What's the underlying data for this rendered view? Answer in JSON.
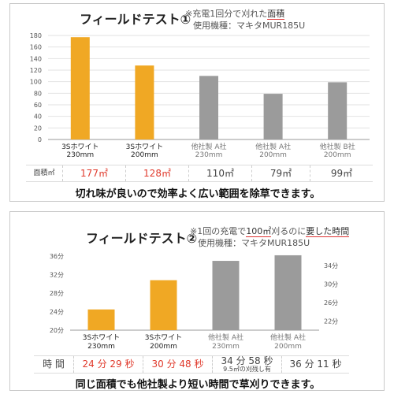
{
  "panels": [
    {
      "title": "フィールドテスト①",
      "note_prefix": "※充電1回分で刈れた",
      "note_highlight": "面積",
      "model": "使用機種：マキタMUR185U",
      "caption": "切れ味が良いので効率よく広い範囲を除草できます。",
      "result_label": "面積㎡",
      "results": [
        "177㎡",
        "128㎡",
        "110㎡",
        "79㎡",
        "99㎡"
      ],
      "result_colors": [
        "#e0392b",
        "#e0392b",
        "#444444",
        "#444444",
        "#444444"
      ]
    },
    {
      "title": "フィールドテスト②",
      "note_prefix": "※1回の充電で",
      "note_highlight_1": "100㎡",
      "note_mid": "刈るのに",
      "note_highlight_2": "要した時間",
      "model": "使用機種：マキタMUR185U",
      "caption": "同じ面積でも他社製より短い時間で草刈りできます。",
      "result_label": "時 間",
      "results": [
        "24 分 29 秒",
        "30 分 48 秒",
        "34 分 58 秒",
        "36 分 11 秒"
      ],
      "result_notes": [
        "",
        "",
        "9.5㎡の刈残し有",
        ""
      ],
      "result_colors": [
        "#e0392b",
        "#e0392b",
        "#444444",
        "#444444"
      ]
    }
  ],
  "chart_data": [
    {
      "type": "bar",
      "title": "フィールドテスト①",
      "categories": [
        [
          "3Sホワイト",
          "230mm"
        ],
        [
          "3Sホワイト",
          "200mm"
        ],
        [
          "他社製 A社",
          "230mm"
        ],
        [
          "他社製 A社",
          "200mm"
        ],
        [
          "他社製 B社",
          "200mm"
        ]
      ],
      "values": [
        177,
        128,
        110,
        79,
        99
      ],
      "colors": [
        "#f0a824",
        "#f0a824",
        "#9b9b9b",
        "#9b9b9b",
        "#9b9b9b"
      ],
      "ylabel": "",
      "ylim": [
        0,
        180
      ],
      "yticks": [
        0,
        20,
        40,
        60,
        80,
        100,
        120,
        140,
        160,
        180
      ],
      "grid": true
    },
    {
      "type": "bar",
      "title": "フィールドテスト②",
      "categories": [
        [
          "3Sホワイト",
          "230mm"
        ],
        [
          "3Sホワイト",
          "200mm"
        ],
        [
          "他社製 A社",
          "230mm"
        ],
        [
          "他社製 A社",
          "200mm"
        ]
      ],
      "values": [
        24.48,
        30.8,
        34.97,
        36.18
      ],
      "colors": [
        "#f0a824",
        "#f0a824",
        "#9b9b9b",
        "#9b9b9b"
      ],
      "ylim_left": [
        20,
        36
      ],
      "yticks_left": [
        "20分",
        "24分",
        "28分",
        "32分",
        "36分"
      ],
      "ytick_values_left": [
        20,
        24,
        28,
        32,
        36
      ],
      "yticks_right": [
        "22分",
        "26分",
        "30分",
        "34分"
      ],
      "ytick_values_right": [
        22,
        26,
        30,
        34
      ],
      "ylim_right": [
        20,
        36
      ],
      "grid": false
    }
  ]
}
